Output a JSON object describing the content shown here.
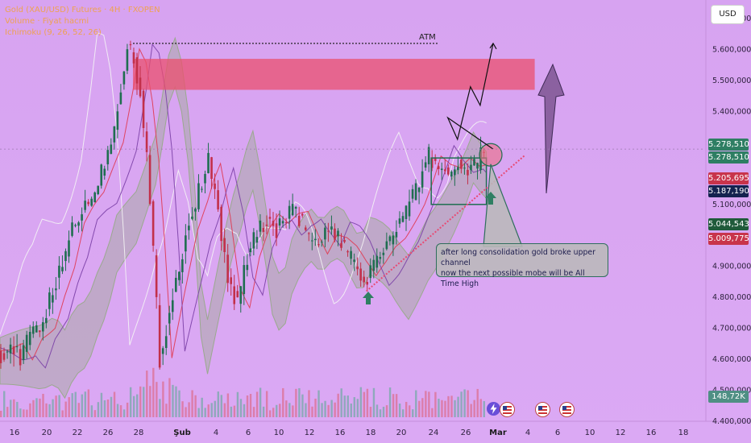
{
  "legend": {
    "line1": "Gold (XAU/USD) Futures · 4H · FXOPEN",
    "line2": "Volume · Fiyat hacmi",
    "line3": "Ichimoku (9, 26, 52, 26)"
  },
  "currency_button": "USD",
  "annotation_atm": "ATM",
  "note_line1": "after long consolidation gold broke upper channel",
  "note_line2": "now the next possible mobe will be All Time High",
  "price_tags": [
    {
      "value": 5278510,
      "label": "5.278,510",
      "color": "#2e7e63"
    },
    {
      "value": 5278510,
      "label": "5.278,510",
      "color": "#2e7e63"
    },
    {
      "value": 5205695,
      "label": "5.205,695",
      "color": "#c8344b"
    },
    {
      "value": 5187190,
      "label": "5.187,190",
      "color": "#14224f"
    },
    {
      "value": 5044543,
      "label": "5.044,543",
      "color": "#1f5a3a"
    },
    {
      "value": 5009775,
      "label": "5.009,775",
      "color": "#c8344b"
    }
  ],
  "volume_tag": {
    "label": "148,72K",
    "color": "#4f8f84"
  },
  "chart_data": {
    "type": "candlestick",
    "y_axis_ticks": [
      {
        "value": 5700000,
        "label": "5.700,000"
      },
      {
        "value": 5600000,
        "label": "5.600,000"
      },
      {
        "value": 5500000,
        "label": "5.500,000"
      },
      {
        "value": 5400000,
        "label": "5.400,000"
      },
      {
        "value": 5100000,
        "label": "5.100,000"
      },
      {
        "value": 4900000,
        "label": "4.900,000"
      },
      {
        "value": 4800000,
        "label": "4.800,000"
      },
      {
        "value": 4700000,
        "label": "4.700,000"
      },
      {
        "value": 4600000,
        "label": "4.600,000"
      },
      {
        "value": 4500000,
        "label": "4.500,000"
      },
      {
        "value": 4400000,
        "label": "4.400,000"
      }
    ],
    "ylim": [
      4400000,
      5760000
    ],
    "x_axis_labels": [
      {
        "label": "16",
        "idx": 0,
        "accent": false
      },
      {
        "label": "20",
        "idx": 1,
        "accent": false
      },
      {
        "label": "22",
        "idx": 2,
        "accent": false
      },
      {
        "label": "26",
        "idx": 3,
        "accent": false
      },
      {
        "label": "28",
        "idx": 4,
        "accent": false
      },
      {
        "label": "Şub",
        "idx": 5,
        "accent": true
      },
      {
        "label": "4",
        "idx": 6,
        "accent": false
      },
      {
        "label": "6",
        "idx": 7,
        "accent": false
      },
      {
        "label": "10",
        "idx": 8,
        "accent": false
      },
      {
        "label": "12",
        "idx": 9,
        "accent": false
      },
      {
        "label": "16",
        "idx": 10,
        "accent": false
      },
      {
        "label": "18",
        "idx": 11,
        "accent": false
      },
      {
        "label": "20",
        "idx": 12,
        "accent": false
      },
      {
        "label": "24",
        "idx": 13,
        "accent": false
      },
      {
        "label": "26",
        "idx": 14,
        "accent": false
      },
      {
        "label": "Mar",
        "idx": 15,
        "accent": true
      },
      {
        "label": "4",
        "idx": 16,
        "accent": false
      },
      {
        "label": "6",
        "idx": 17,
        "accent": false
      },
      {
        "label": "10",
        "idx": 18,
        "accent": false
      },
      {
        "label": "12",
        "idx": 19,
        "accent": false
      },
      {
        "label": "16",
        "idx": 20,
        "accent": false
      },
      {
        "label": "18",
        "idx": 21,
        "accent": false
      }
    ],
    "last_price": 5278510,
    "close_path": [
      [
        0,
        4610000
      ],
      [
        8,
        4640000
      ],
      [
        14,
        4600000
      ],
      [
        20,
        4680000
      ],
      [
        28,
        4720000
      ],
      [
        34,
        4820000
      ],
      [
        40,
        4900000
      ],
      [
        46,
        5030000
      ],
      [
        52,
        5080000
      ],
      [
        58,
        5120000
      ],
      [
        64,
        5210000
      ],
      [
        70,
        5300000
      ],
      [
        76,
        5480000
      ],
      [
        80,
        5620000
      ],
      [
        84,
        5580000
      ],
      [
        88,
        5450000
      ],
      [
        92,
        5250000
      ],
      [
        96,
        4950000
      ],
      [
        100,
        4600000
      ],
      [
        104,
        4700000
      ],
      [
        110,
        4850000
      ],
      [
        116,
        5000000
      ],
      [
        122,
        5100000
      ],
      [
        126,
        5180000
      ],
      [
        130,
        5240000
      ],
      [
        136,
        5080000
      ],
      [
        142,
        4850000
      ],
      [
        148,
        4780000
      ],
      [
        154,
        4930000
      ],
      [
        160,
        5010000
      ],
      [
        166,
        5050000
      ],
      [
        172,
        5020000
      ],
      [
        178,
        5060000
      ],
      [
        184,
        5080000
      ],
      [
        190,
        5020000
      ],
      [
        196,
        4960000
      ],
      [
        202,
        5020000
      ],
      [
        208,
        5000000
      ],
      [
        214,
        4960000
      ],
      [
        220,
        4900000
      ],
      [
        226,
        4850000
      ],
      [
        232,
        4900000
      ],
      [
        238,
        4960000
      ],
      [
        244,
        5000000
      ],
      [
        250,
        5060000
      ],
      [
        256,
        5120000
      ],
      [
        262,
        5200000
      ],
      [
        266,
        5260000
      ],
      [
        272,
        5220000
      ],
      [
        278,
        5200000
      ],
      [
        284,
        5230000
      ],
      [
        290,
        5210000
      ],
      [
        296,
        5230000
      ],
      [
        300,
        5278510
      ]
    ],
    "atm_level": 5620000,
    "resistance_zone": [
      5470000,
      5570000
    ],
    "consolidation_channel": [
      5100000,
      5250000
    ],
    "projection_path": [
      [
        300,
        5278510
      ],
      [
        306,
        5380000
      ],
      [
        312,
        5310000
      ],
      [
        320,
        5480000
      ],
      [
        326,
        5420000
      ],
      [
        334,
        5620000
      ]
    ]
  }
}
